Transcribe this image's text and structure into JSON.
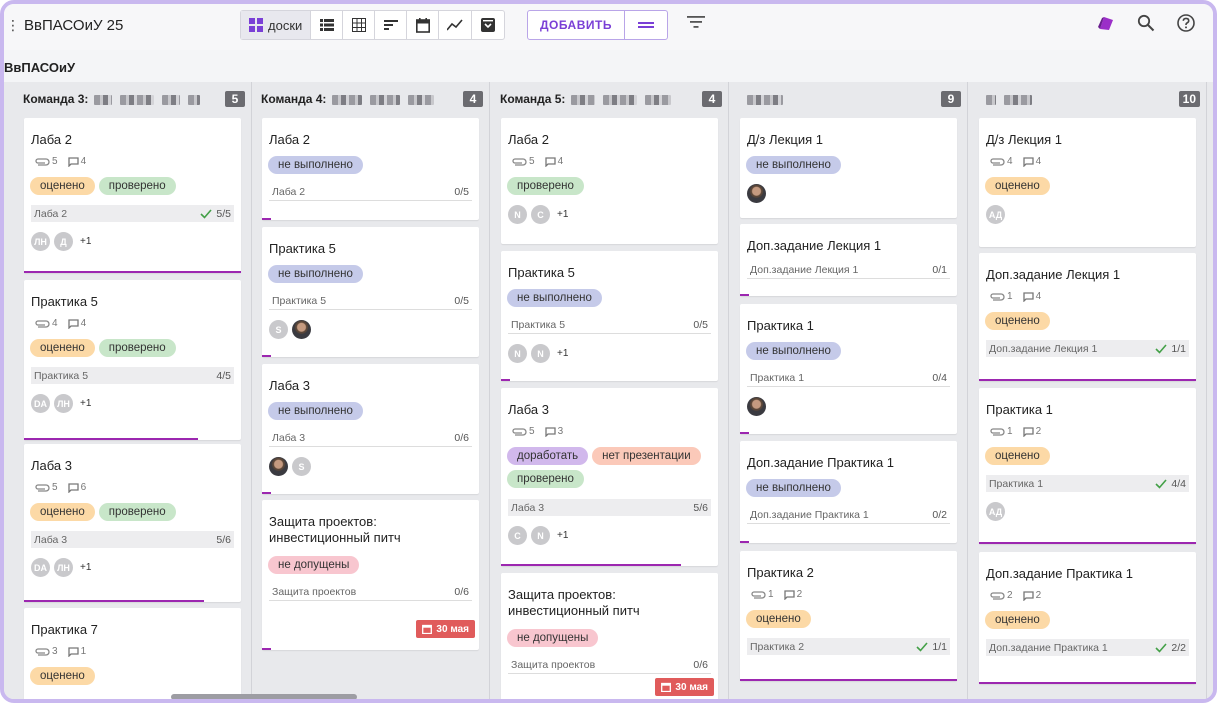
{
  "app": {
    "title": "ВвПАСОиУ 25",
    "board_title": "ВвПАСОиУ"
  },
  "toolbar": {
    "boards_label": "доски",
    "add_label": "ДОБАВИТЬ"
  },
  "icons": [
    "menu-icon",
    "boards-icon",
    "list-icon",
    "table-icon",
    "sort-icon",
    "calendar-icon",
    "chart-icon",
    "archive-icon",
    "add-menu-icon",
    "filter-icon",
    "brand-icon",
    "search-icon",
    "help-icon",
    "attach-icon",
    "comment-icon",
    "check-icon"
  ],
  "colors": {
    "accent": "#7a3fd6",
    "progress": "#9c27b0",
    "date_badge": "#e05b5b"
  },
  "columns": [
    {
      "title": "Команда 3:",
      "count": "5",
      "cards": [
        {
          "title": "Лаба 2",
          "attach": "5",
          "comments": "4",
          "tags": [
            "оценено",
            "проверено"
          ],
          "task": "Лаба 2",
          "task_value": "5/5",
          "avatars": [
            "ЛН",
            "Д"
          ],
          "more": "+1"
        },
        {
          "title": "Практика 5",
          "attach": "4",
          "comments": "4",
          "tags": [
            "оценено",
            "проверено"
          ],
          "task": "Практика 5",
          "task_value": "4/5",
          "avatars": [
            "DA",
            "ЛН"
          ],
          "more": "+1"
        },
        {
          "title": "Лаба 3",
          "attach": "5",
          "comments": "6",
          "tags": [
            "оценено",
            "проверено"
          ],
          "task": "Лаба 3",
          "task_value": "5/6",
          "avatars": [
            "DA",
            "ЛН"
          ],
          "more": "+1"
        },
        {
          "title": "Практика 7",
          "attach": "3",
          "comments": "1",
          "tags": [
            "оценено"
          ]
        }
      ]
    },
    {
      "title": "Команда 4:",
      "count": "4",
      "cards": [
        {
          "title": "Лаба 2",
          "tags": [
            "не выполнено"
          ],
          "task": "Лаба 2",
          "task_value": "0/5"
        },
        {
          "title": "Практика 5",
          "tags": [
            "не выполнено"
          ],
          "task": "Практика 5",
          "task_value": "0/5",
          "avatars": [
            "S"
          ]
        },
        {
          "title": "Лаба 3",
          "tags": [
            "не выполнено"
          ],
          "task": "Лаба 3",
          "task_value": "0/6",
          "avatars": [
            "S"
          ]
        },
        {
          "title": "Защита проектов: инвестиционный питч",
          "tags": [
            "не допущены"
          ],
          "task": "Защита проектов",
          "task_value": "0/6",
          "date": "30 мая"
        }
      ]
    },
    {
      "title": "Команда 5:",
      "count": "4",
      "cards": [
        {
          "title": "Лаба 2",
          "attach": "5",
          "comments": "4",
          "tags": [
            "проверено"
          ],
          "avatars": [
            "N",
            "C"
          ],
          "more": "+1"
        },
        {
          "title": "Практика 5",
          "tags": [
            "не выполнено"
          ],
          "task": "Практика 5",
          "task_value": "0/5",
          "avatars": [
            "N",
            "N"
          ],
          "more": "+1"
        },
        {
          "title": "Лаба 3",
          "attach": "5",
          "comments": "3",
          "tags": [
            "доработать",
            "нет презентации",
            "проверено"
          ],
          "task": "Лаба 3",
          "task_value": "5/6",
          "avatars": [
            "C",
            "N"
          ],
          "more": "+1"
        },
        {
          "title": "Защита проектов: инвестиционный питч",
          "tags": [
            "не допущены"
          ],
          "task": "Защита проектов",
          "task_value": "0/6",
          "date": "30 мая"
        }
      ]
    },
    {
      "title": "",
      "count": "9",
      "cards": [
        {
          "title": "Д/з Лекция 1",
          "tags": [
            "не выполнено"
          ]
        },
        {
          "title": "Доп.задание Лекция 1",
          "task": "Доп.задание Лекция 1",
          "task_value": "0/1"
        },
        {
          "title": "Практика 1",
          "tags": [
            "не выполнено"
          ],
          "task": "Практика 1",
          "task_value": "0/4"
        },
        {
          "title": "Доп.задание Практика 1",
          "tags": [
            "не выполнено"
          ],
          "task": "Доп.задание Практика 1",
          "task_value": "0/2"
        },
        {
          "title": "Практика 2",
          "attach": "1",
          "comments": "2",
          "tags": [
            "оценено"
          ],
          "task": "Практика 2",
          "task_value": "1/1"
        }
      ]
    },
    {
      "title": "",
      "count": "10",
      "cards": [
        {
          "title": "Д/з Лекция 1",
          "attach": "4",
          "comments": "4",
          "tags": [
            "оценено"
          ],
          "avatars": [
            "АД"
          ]
        },
        {
          "title": "Доп.задание Лекция 1",
          "attach": "1",
          "comments": "4",
          "tags": [
            "оценено"
          ],
          "task": "Доп.задание Лекция 1",
          "task_value": "1/1"
        },
        {
          "title": "Практика 1",
          "attach": "1",
          "comments": "2",
          "tags": [
            "оценено"
          ],
          "task": "Практика 1",
          "task_value": "4/4",
          "avatars": [
            "АД"
          ]
        },
        {
          "title": "Доп.задание Практика 1",
          "attach": "2",
          "comments": "2",
          "tags": [
            "оценено"
          ],
          "task": "Доп.задание Практика 1",
          "task_value": "2/2"
        }
      ]
    }
  ]
}
